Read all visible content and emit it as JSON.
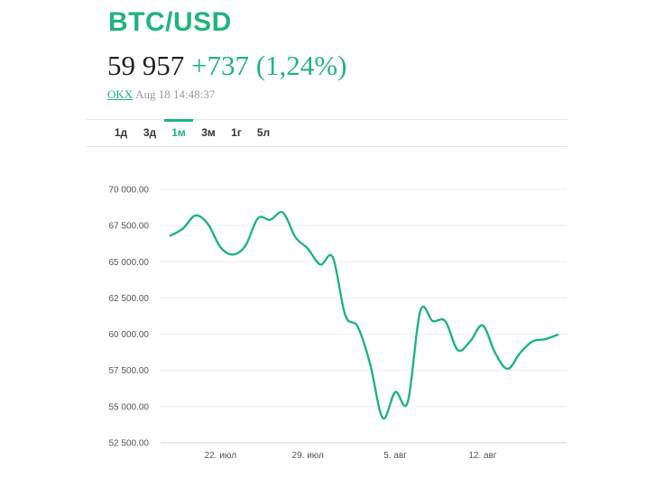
{
  "header": {
    "title": "BTC/USD",
    "price": "59 957",
    "change": "+737 (1,24%)",
    "source": "OKX",
    "timestamp": "Aug 18 14:48:37"
  },
  "tabs": [
    {
      "label": "1д",
      "active": false
    },
    {
      "label": "3д",
      "active": false
    },
    {
      "label": "1м",
      "active": true
    },
    {
      "label": "3м",
      "active": false
    },
    {
      "label": "1г",
      "active": false
    },
    {
      "label": "5л",
      "active": false
    }
  ],
  "colors": {
    "accent": "#1fb57e",
    "grid": "#eeeeee"
  },
  "chart_data": {
    "type": "line",
    "title": "",
    "xlabel": "",
    "ylabel": "",
    "ylim": [
      52500,
      70000
    ],
    "yticks": [
      "70 000.00",
      "67 500.00",
      "65 000.00",
      "62 500.00",
      "60 000.00",
      "57 500.00",
      "55 000.00",
      "52 500.00"
    ],
    "xticks": [
      "22. июл",
      "29. июл",
      "5. авг",
      "12. авг"
    ],
    "grid": true,
    "legend": "none",
    "series": [
      {
        "x": [
          "2024-07-18",
          "2024-07-19",
          "2024-07-20",
          "2024-07-21",
          "2024-07-22",
          "2024-07-23",
          "2024-07-24",
          "2024-07-25",
          "2024-07-26",
          "2024-07-27",
          "2024-07-28",
          "2024-07-29",
          "2024-07-30",
          "2024-07-31",
          "2024-08-01",
          "2024-08-02",
          "2024-08-03",
          "2024-08-04",
          "2024-08-05",
          "2024-08-06",
          "2024-08-07",
          "2024-08-08",
          "2024-08-09",
          "2024-08-10",
          "2024-08-11",
          "2024-08-12",
          "2024-08-13",
          "2024-08-14",
          "2024-08-15",
          "2024-08-16",
          "2024-08-17",
          "2024-08-18"
        ],
        "values": [
          66800,
          67300,
          68200,
          67600,
          66000,
          65500,
          66100,
          68000,
          67900,
          68400,
          66700,
          65900,
          64800,
          65300,
          61300,
          60500,
          57900,
          54200,
          56000,
          55300,
          61600,
          60900,
          60900,
          58900,
          59500,
          60600,
          58700,
          57600,
          58700,
          59500,
          59650,
          59957
        ]
      }
    ]
  }
}
